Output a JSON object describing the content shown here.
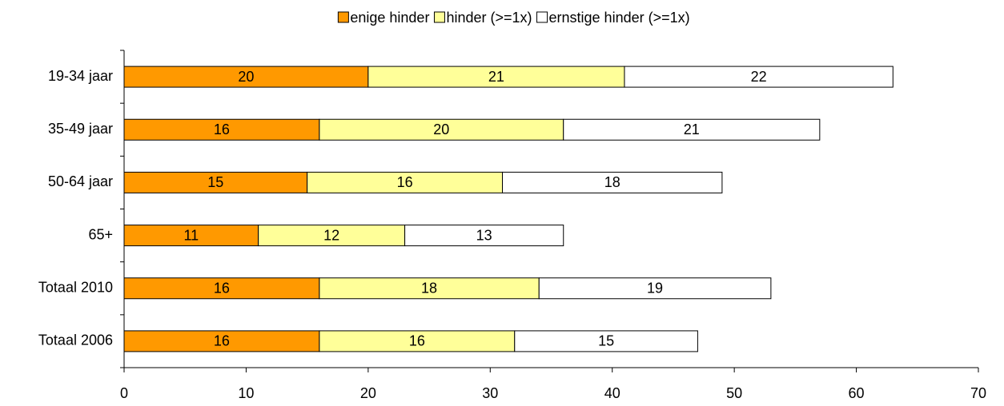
{
  "chart_data": {
    "type": "stacked-bar-horizontal",
    "categories": [
      "19-34 jaar",
      "35-49 jaar",
      "50-64 jaar",
      "65+",
      "Totaal 2010",
      "Totaal 2006"
    ],
    "series": [
      {
        "name": "enige hinder",
        "color": "#ff9900",
        "values": [
          20,
          16,
          15,
          11,
          16,
          16
        ]
      },
      {
        "name": "hinder (>=1x)",
        "color": "#ffff99",
        "values": [
          21,
          20,
          16,
          12,
          18,
          16
        ]
      },
      {
        "name": "ernstige hinder (>=1x)",
        "color": "#ffffff",
        "values": [
          22,
          21,
          18,
          13,
          19,
          15
        ]
      }
    ],
    "xlim": [
      0,
      70
    ],
    "xticks": [
      0,
      10,
      20,
      30,
      40,
      50,
      60,
      70
    ],
    "legend": "top"
  }
}
